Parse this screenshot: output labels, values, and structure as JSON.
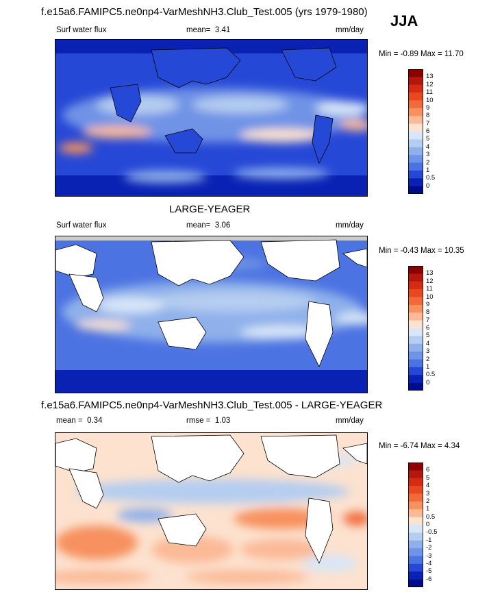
{
  "page": {
    "season": "JJA",
    "model_title": "f.e15a6.FAMIPC5.ne0np4-VarMeshNH3.Club_Test.005 (yrs 1979-1980)",
    "obs_title": "LARGE-YEAGER",
    "diff_title": "f.e15a6.FAMIPC5.ne0np4-VarMeshNH3.Club_Test.005 - LARGE-YEAGER"
  },
  "chart_data": [
    {
      "type": "heatmap",
      "id": "model",
      "variable": "Surf water flux",
      "units": "mm/day",
      "mean_label": "mean=",
      "mean": "3.41",
      "min_max": "Min =  -0.89 Max =  11.70",
      "colorbar_levels": [
        "13",
        "12",
        "11",
        "10",
        "9",
        "8",
        "7",
        "6",
        "5",
        "4",
        "3",
        "2",
        "1",
        "0.5",
        "0"
      ],
      "colorbar_colors": [
        "#8b0000",
        "#b4180c",
        "#d42c14",
        "#e8481e",
        "#f26a3a",
        "#f7915e",
        "#fbb997",
        "#fce2cf",
        "#d7e6f8",
        "#b5cdf0",
        "#8fb0ea",
        "#6f93e6",
        "#4c73e2",
        "#2648d6",
        "#0a22b4",
        "#000c8a"
      ]
    },
    {
      "type": "heatmap",
      "id": "obs",
      "variable": "Surf water flux",
      "units": "mm/day",
      "mean_label": "mean=",
      "mean": "3.06",
      "min_max": "Min =  -0.43 Max =  10.35",
      "colorbar_levels": [
        "13",
        "12",
        "11",
        "10",
        "9",
        "8",
        "7",
        "6",
        "5",
        "4",
        "3",
        "2",
        "1",
        "0.5",
        "0"
      ],
      "colorbar_colors": [
        "#8b0000",
        "#b4180c",
        "#d42c14",
        "#e8481e",
        "#f26a3a",
        "#f7915e",
        "#fbb997",
        "#fce2cf",
        "#d7e6f8",
        "#b5cdf0",
        "#8fb0ea",
        "#6f93e6",
        "#4c73e2",
        "#2648d6",
        "#0a22b4",
        "#000c8a"
      ]
    },
    {
      "type": "heatmap",
      "id": "diff",
      "variable": "",
      "units": "mm/day",
      "mean_label": "mean =",
      "mean": "0.34",
      "rmse_label": "rmse =",
      "rmse": "1.03",
      "min_max": "Min =  -6.74 Max =   4.34",
      "colorbar_levels": [
        "6",
        "5",
        "4",
        "3",
        "2",
        "1",
        "0.5",
        "0",
        "-0.5",
        "-1",
        "-2",
        "-3",
        "-4",
        "-5",
        "-6"
      ],
      "colorbar_colors": [
        "#8b0000",
        "#b4180c",
        "#d42c14",
        "#e8481e",
        "#f26a3a",
        "#f7915e",
        "#fbb997",
        "#fce2cf",
        "#d7e6f8",
        "#b5cdf0",
        "#8fb0ea",
        "#6f93e6",
        "#4c73e2",
        "#2648d6",
        "#0a22b4",
        "#000c8a"
      ]
    }
  ]
}
